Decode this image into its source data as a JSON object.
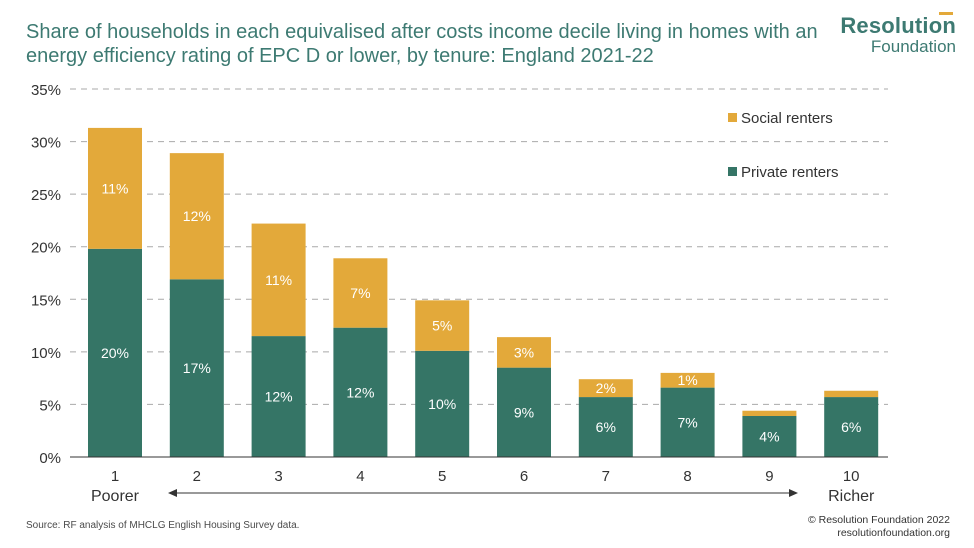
{
  "title": {
    "line1": "Share of households in each equivalised after costs income decile living in homes with an",
    "line2": "energy efficiency rating of EPC D or lower, by tenure: England 2021-22"
  },
  "logo": {
    "line1": "Resolution",
    "line2": "Foundation"
  },
  "colors": {
    "private": "#357566",
    "social": "#e3a93a",
    "title": "#3d7a72",
    "grid": "#a9a9a9",
    "axis": "#333333"
  },
  "chart_data": {
    "type": "bar",
    "stacked": true,
    "categories": [
      "1",
      "2",
      "3",
      "4",
      "5",
      "6",
      "7",
      "8",
      "9",
      "10"
    ],
    "series": [
      {
        "name": "Private renters",
        "values": [
          19.8,
          16.9,
          11.5,
          12.3,
          10.1,
          8.5,
          5.7,
          6.6,
          3.9,
          5.7
        ],
        "labels": [
          "20%",
          "17%",
          "12%",
          "12%",
          "10%",
          "9%",
          "6%",
          "7%",
          "4%",
          "6%"
        ]
      },
      {
        "name": "Social renters",
        "values": [
          11.5,
          12.0,
          10.7,
          6.6,
          4.8,
          2.9,
          1.7,
          1.4,
          0.5,
          0.6
        ],
        "labels": [
          "11%",
          "12%",
          "11%",
          "7%",
          "5%",
          "3%",
          "2%",
          "1%",
          "",
          ""
        ]
      }
    ],
    "ylim": [
      0,
      35
    ],
    "yticks": [
      "0%",
      "5%",
      "10%",
      "15%",
      "20%",
      "25%",
      "30%",
      "35%"
    ],
    "legend": [
      "Social renters",
      "Private renters"
    ],
    "x_annotations": {
      "left": "Poorer",
      "right": "Richer"
    },
    "grid": true
  },
  "footer": {
    "source": "Source: RF analysis of MHCLG English Housing Survey data.",
    "copyright": "© Resolution Foundation 2022",
    "website": "resolutionfoundation.org"
  }
}
